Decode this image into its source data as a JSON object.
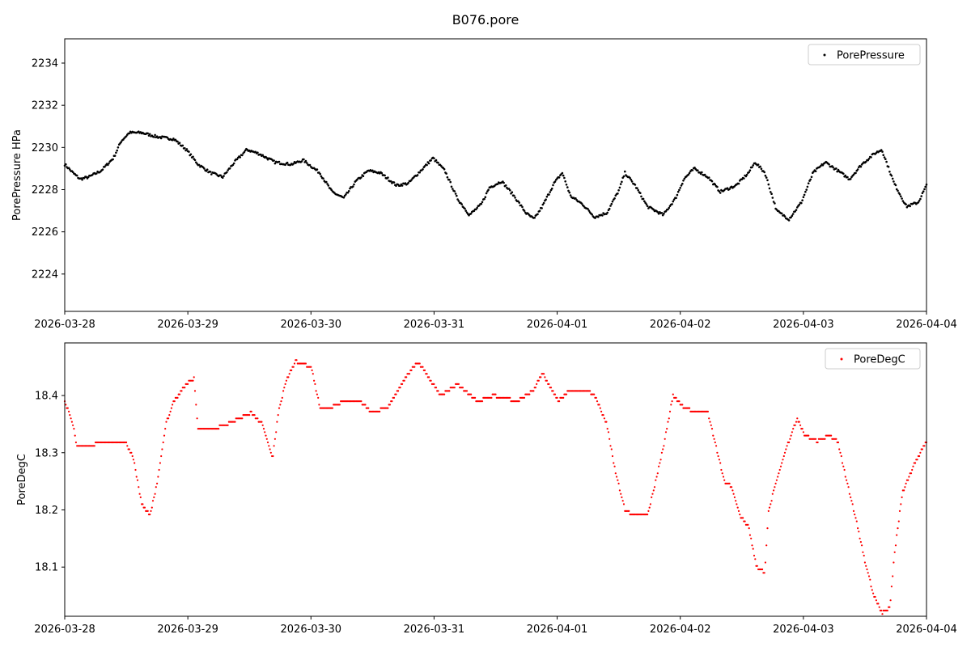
{
  "title": "B076.pore",
  "chart_data": [
    {
      "type": "scatter",
      "name": "pressure",
      "ylabel": "PorePressure HPa",
      "xlabel": "",
      "legend": {
        "label": "PorePressure",
        "placement": "top-right"
      },
      "color": "#000000",
      "x_unit": "hours since 2026-03-28 00:00",
      "xlim": [
        0,
        168
      ],
      "ylim": [
        2222.23,
        2235.15
      ],
      "yticks": [
        2224,
        2226,
        2228,
        2230,
        2232,
        2234
      ],
      "xtick_labels": [
        "2026-03-28",
        "2026-03-29",
        "2026-03-30",
        "2026-03-31",
        "2026-04-01",
        "2026-04-02",
        "2026-04-03",
        "2026-04-04"
      ],
      "x": [
        0,
        1.6,
        3.0,
        4.7,
        7.1,
        9.5,
        11.0,
        12.6,
        15.0,
        18.1,
        21.3,
        23.7,
        26.0,
        28.4,
        30.8,
        33.1,
        35.5,
        37.9,
        41.0,
        44.2,
        46.5,
        49.7,
        52.1,
        54.4,
        56.8,
        59.2,
        61.5,
        64.7,
        67.0,
        69.4,
        71.8,
        74.1,
        76.5,
        78.9,
        81.2,
        82.8,
        85.2,
        87.6,
        89.9,
        91.5,
        93.1,
        95.4,
        97.0,
        98.6,
        101.0,
        103.3,
        105.7,
        108.1,
        109.2,
        111.2,
        113.6,
        116.7,
        119.1,
        120.7,
        122.7,
        125.4,
        127.8,
        130.9,
        133.3,
        134.6,
        136.5,
        138.8,
        141.2,
        143.6,
        145.9,
        148.3,
        150.7,
        153.0,
        155.4,
        157.8,
        159.3,
        161.7,
        164.1,
        166.4,
        168
      ],
      "y": [
        2229.2,
        2228.8,
        2228.5,
        2228.6,
        2228.9,
        2229.5,
        2230.3,
        2230.7,
        2230.7,
        2230.5,
        2230.4,
        2229.9,
        2229.2,
        2228.8,
        2228.6,
        2229.3,
        2229.9,
        2229.7,
        2229.3,
        2229.2,
        2229.4,
        2228.8,
        2227.9,
        2227.6,
        2228.4,
        2228.9,
        2228.8,
        2228.2,
        2228.3,
        2228.9,
        2229.5,
        2228.9,
        2227.6,
        2226.8,
        2227.3,
        2228.1,
        2228.4,
        2227.7,
        2226.9,
        2226.6,
        2227.2,
        2228.3,
        2228.8,
        2227.7,
        2227.3,
        2226.7,
        2226.9,
        2228.0,
        2228.8,
        2228.2,
        2227.2,
        2226.8,
        2227.6,
        2228.5,
        2229.0,
        2228.6,
        2227.9,
        2228.2,
        2228.8,
        2229.3,
        2228.8,
        2227.0,
        2226.6,
        2227.4,
        2228.8,
        2229.3,
        2228.9,
        2228.5,
        2229.2,
        2229.7,
        2229.9,
        2228.3,
        2227.2,
        2227.4,
        2228.2
      ]
    },
    {
      "type": "scatter",
      "name": "temperature",
      "ylabel": "PoreDegC",
      "xlabel": "",
      "legend": {
        "label": "PoreDegC",
        "placement": "top-right"
      },
      "color": "#ff0000",
      "x_unit": "hours since 2026-03-28 00:00",
      "xlim": [
        0,
        168
      ],
      "ylim": [
        18.014,
        18.492
      ],
      "yticks": [
        18.1,
        18.2,
        18.3,
        18.4
      ],
      "xtick_labels": [
        "2026-03-28",
        "2026-03-29",
        "2026-03-30",
        "2026-03-31",
        "2026-04-01",
        "2026-04-02",
        "2026-04-03",
        "2026-04-04"
      ],
      "x": [
        0,
        1.6,
        2.4,
        4.7,
        7.1,
        9.5,
        11.8,
        13.4,
        15.0,
        16.6,
        18.1,
        19.7,
        21.3,
        23.7,
        25.2,
        26.0,
        28.4,
        31.6,
        33.9,
        36.3,
        38.6,
        40.5,
        41.8,
        43.4,
        45.0,
        48.1,
        49.7,
        52.1,
        54.4,
        57.6,
        59.9,
        63.1,
        66.3,
        68.9,
        71.0,
        73.4,
        76.5,
        80.5,
        83.6,
        88.3,
        91.5,
        93.1,
        96.2,
        98.6,
        101.7,
        103.3,
        105.7,
        107.3,
        109.2,
        111.2,
        113.6,
        115.2,
        116.7,
        118.6,
        120.7,
        123.0,
        125.4,
        127.0,
        128.6,
        130.1,
        131.7,
        133.3,
        134.9,
        136.5,
        137.2,
        138.8,
        140.4,
        142.8,
        144.3,
        146.7,
        149.1,
        150.7,
        152.2,
        154.6,
        156.2,
        157.8,
        159.3,
        160.9,
        161.7,
        163.3,
        165.6,
        168
      ],
      "y": [
        18.39,
        18.35,
        18.31,
        18.31,
        18.32,
        18.32,
        18.32,
        18.29,
        18.21,
        18.19,
        18.25,
        18.35,
        18.39,
        18.42,
        18.43,
        18.34,
        18.34,
        18.35,
        18.36,
        18.37,
        18.35,
        18.29,
        18.38,
        18.43,
        18.46,
        18.45,
        18.38,
        18.38,
        18.39,
        18.39,
        18.37,
        18.38,
        18.43,
        18.46,
        18.43,
        18.4,
        18.42,
        18.39,
        18.4,
        18.39,
        18.41,
        18.44,
        18.39,
        18.41,
        18.41,
        18.4,
        18.35,
        18.27,
        18.2,
        18.19,
        18.19,
        18.25,
        18.31,
        18.4,
        18.38,
        18.37,
        18.37,
        18.31,
        18.25,
        18.24,
        18.19,
        18.17,
        18.1,
        18.09,
        18.2,
        18.25,
        18.3,
        18.36,
        18.33,
        18.32,
        18.33,
        18.32,
        18.26,
        18.17,
        18.1,
        18.05,
        18.02,
        18.03,
        18.12,
        18.23,
        18.28,
        18.32
      ]
    }
  ]
}
